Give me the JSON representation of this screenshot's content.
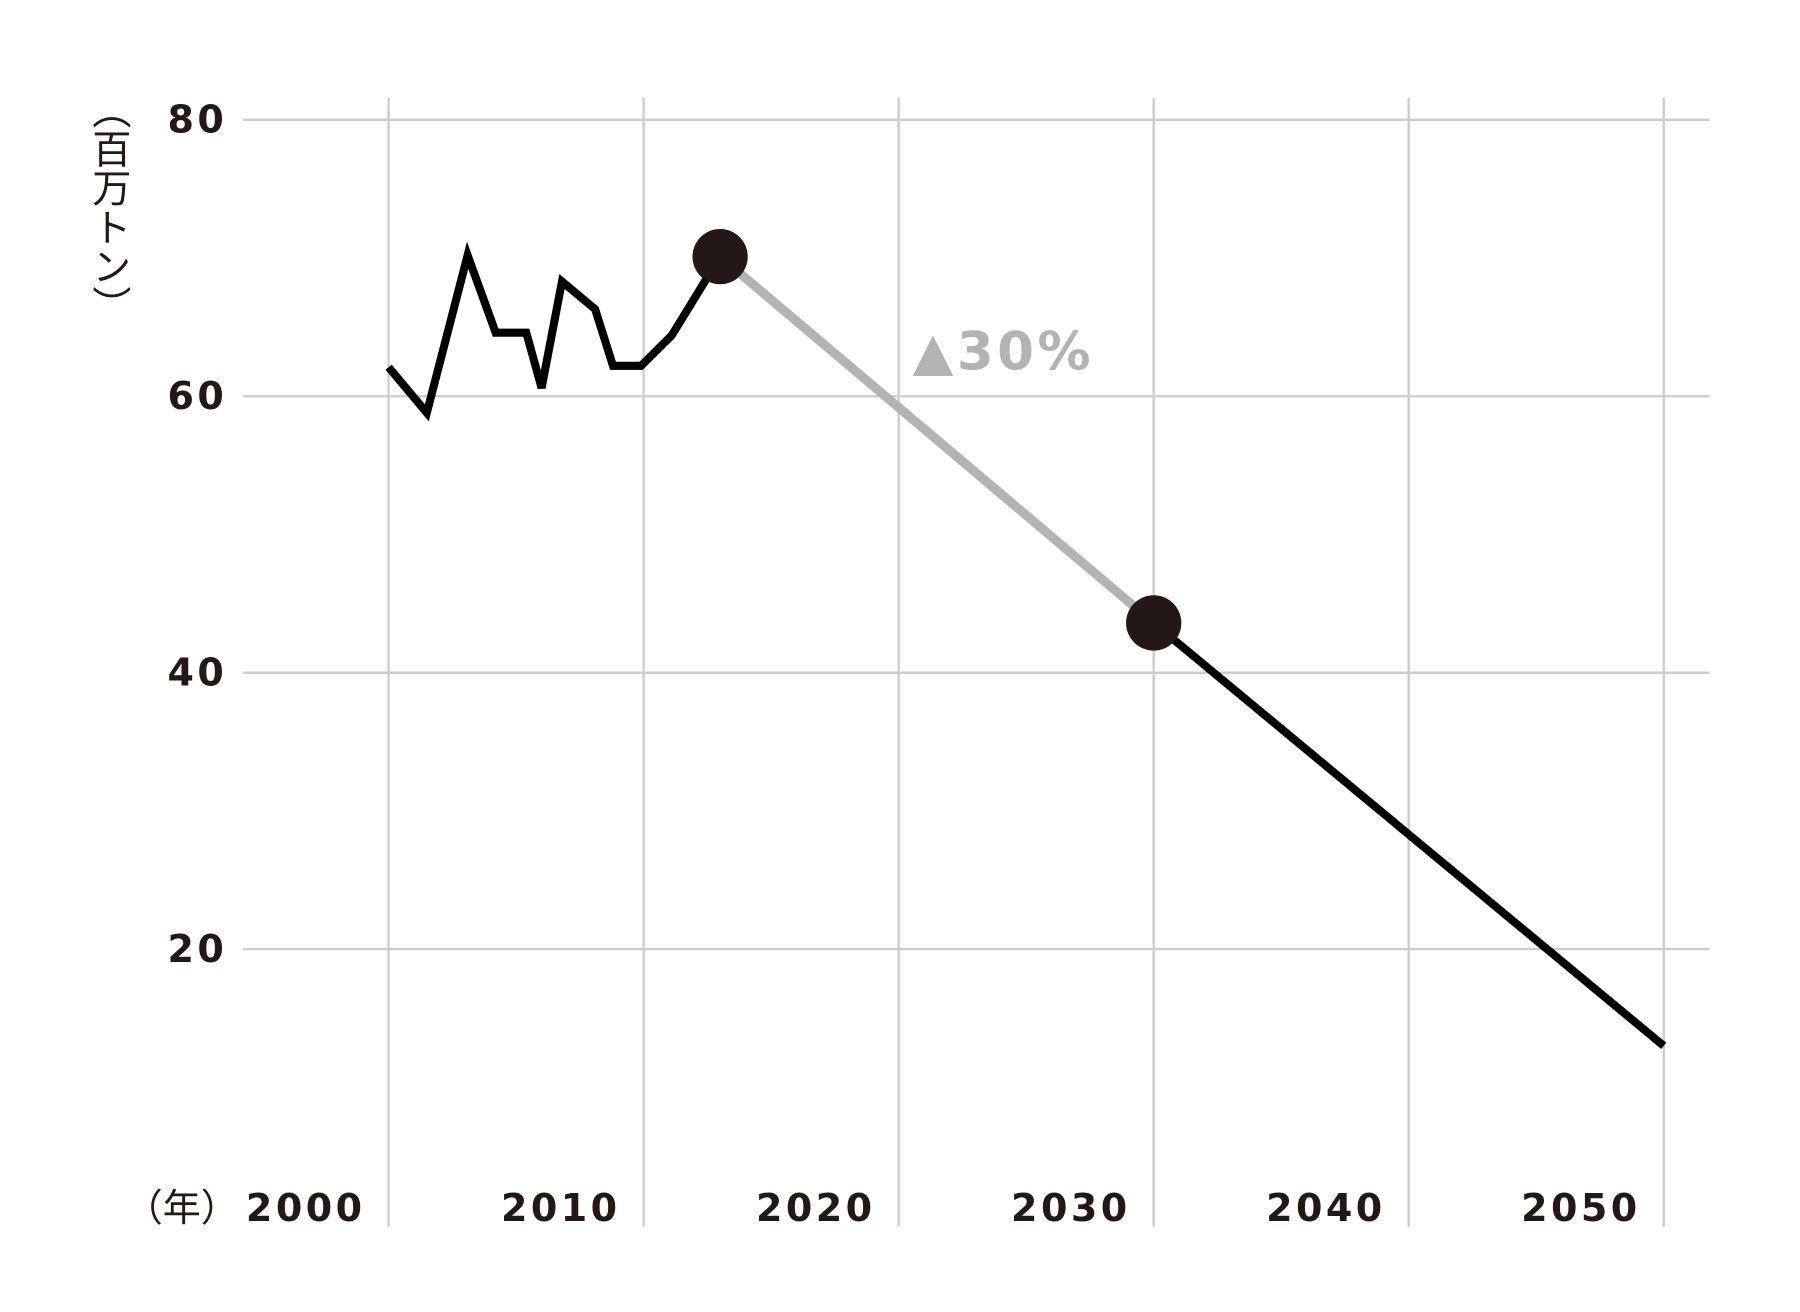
{
  "chart_data": {
    "type": "line",
    "y_label": "（百万トン）",
    "x_label": "（年）",
    "annotation": "▲30%",
    "annotation_color": "#b3b3b3",
    "xlim": [
      1994.3,
      2051.8
    ],
    "ylim": [
      0,
      80
    ],
    "xticks": [
      2000,
      2010,
      2020,
      2030,
      2040,
      2050
    ],
    "yticks": [
      20,
      40,
      60,
      80
    ],
    "grid": true,
    "series": [
      {
        "color": "#000000",
        "x": [
          2000,
          2001.5,
          2003.1,
          2004.2,
          2005.4,
          2006,
          2006.8,
          2008.1,
          2008.8,
          2009.9,
          2011.1,
          2013
        ],
        "values": [
          62.1,
          58.8,
          70.2,
          64.6,
          64.6,
          60.6,
          68.3,
          66.3,
          62.2,
          62.2,
          64.4,
          70.1
        ]
      },
      {
        "color": "#b3b3b3",
        "x": [
          2013,
          2030
        ],
        "values": [
          70.1,
          43.6
        ]
      },
      {
        "color": "#000000",
        "x": [
          2030,
          2050
        ],
        "values": [
          43.6,
          13
        ]
      }
    ],
    "markers": {
      "color": "#231815",
      "x": [
        2013,
        2030
      ],
      "values": [
        70.1,
        43.6
      ]
    }
  }
}
